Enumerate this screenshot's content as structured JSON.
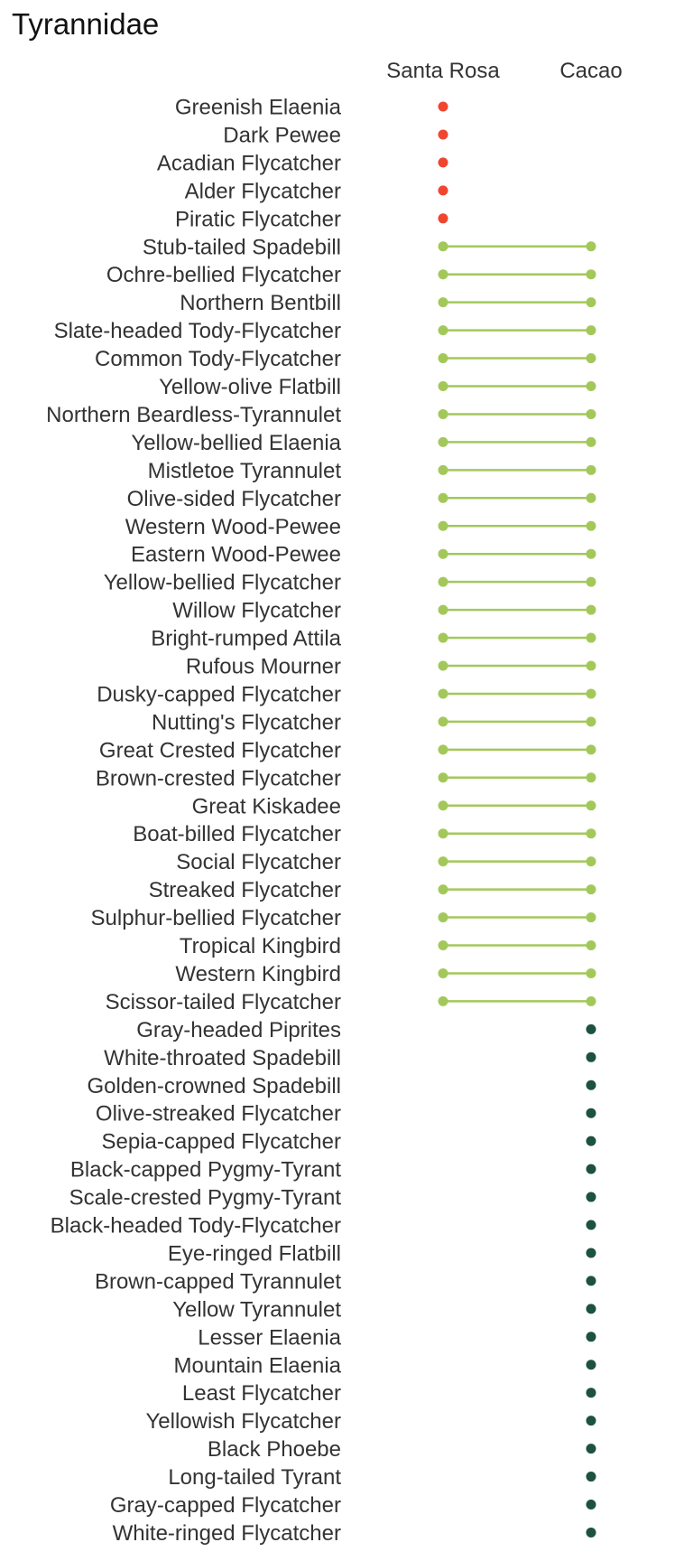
{
  "chart_data": {
    "type": "dumbbell",
    "title": "Tyrannidae",
    "x_categories": [
      "Santa Rosa",
      "Cacao"
    ],
    "groups": [
      {
        "key": "santa_rosa_only",
        "present_at": [
          "Santa Rosa"
        ],
        "color": "#f0452e"
      },
      {
        "key": "both",
        "present_at": [
          "Santa Rosa",
          "Cacao"
        ],
        "color": "#a3c85a"
      },
      {
        "key": "cacao_only",
        "present_at": [
          "Cacao"
        ],
        "color": "#1d5140"
      }
    ],
    "species": [
      {
        "name": "Greenish Elaenia",
        "group": "santa_rosa_only"
      },
      {
        "name": "Dark Pewee",
        "group": "santa_rosa_only"
      },
      {
        "name": "Acadian Flycatcher",
        "group": "santa_rosa_only"
      },
      {
        "name": "Alder Flycatcher",
        "group": "santa_rosa_only"
      },
      {
        "name": "Piratic Flycatcher",
        "group": "santa_rosa_only"
      },
      {
        "name": "Stub-tailed Spadebill",
        "group": "both"
      },
      {
        "name": "Ochre-bellied Flycatcher",
        "group": "both"
      },
      {
        "name": "Northern Bentbill",
        "group": "both"
      },
      {
        "name": "Slate-headed Tody-Flycatcher",
        "group": "both"
      },
      {
        "name": "Common Tody-Flycatcher",
        "group": "both"
      },
      {
        "name": "Yellow-olive Flatbill",
        "group": "both"
      },
      {
        "name": "Northern Beardless-Tyrannulet",
        "group": "both"
      },
      {
        "name": "Yellow-bellied Elaenia",
        "group": "both"
      },
      {
        "name": "Mistletoe Tyrannulet",
        "group": "both"
      },
      {
        "name": "Olive-sided Flycatcher",
        "group": "both"
      },
      {
        "name": "Western Wood-Pewee",
        "group": "both"
      },
      {
        "name": "Eastern Wood-Pewee",
        "group": "both"
      },
      {
        "name": "Yellow-bellied Flycatcher",
        "group": "both"
      },
      {
        "name": "Willow Flycatcher",
        "group": "both"
      },
      {
        "name": "Bright-rumped Attila",
        "group": "both"
      },
      {
        "name": "Rufous Mourner",
        "group": "both"
      },
      {
        "name": "Dusky-capped Flycatcher",
        "group": "both"
      },
      {
        "name": "Nutting's Flycatcher",
        "group": "both"
      },
      {
        "name": "Great Crested Flycatcher",
        "group": "both"
      },
      {
        "name": "Brown-crested Flycatcher",
        "group": "both"
      },
      {
        "name": "Great Kiskadee",
        "group": "both"
      },
      {
        "name": "Boat-billed Flycatcher",
        "group": "both"
      },
      {
        "name": "Social Flycatcher",
        "group": "both"
      },
      {
        "name": "Streaked Flycatcher",
        "group": "both"
      },
      {
        "name": "Sulphur-bellied Flycatcher",
        "group": "both"
      },
      {
        "name": "Tropical Kingbird",
        "group": "both"
      },
      {
        "name": "Western Kingbird",
        "group": "both"
      },
      {
        "name": "Scissor-tailed Flycatcher",
        "group": "both"
      },
      {
        "name": "Gray-headed Piprites",
        "group": "cacao_only"
      },
      {
        "name": "White-throated Spadebill",
        "group": "cacao_only"
      },
      {
        "name": "Golden-crowned Spadebill",
        "group": "cacao_only"
      },
      {
        "name": "Olive-streaked Flycatcher",
        "group": "cacao_only"
      },
      {
        "name": "Sepia-capped Flycatcher",
        "group": "cacao_only"
      },
      {
        "name": "Black-capped Pygmy-Tyrant",
        "group": "cacao_only"
      },
      {
        "name": "Scale-crested Pygmy-Tyrant",
        "group": "cacao_only"
      },
      {
        "name": "Black-headed Tody-Flycatcher",
        "group": "cacao_only"
      },
      {
        "name": "Eye-ringed Flatbill",
        "group": "cacao_only"
      },
      {
        "name": "Brown-capped Tyrannulet",
        "group": "cacao_only"
      },
      {
        "name": "Yellow Tyrannulet",
        "group": "cacao_only"
      },
      {
        "name": "Lesser Elaenia",
        "group": "cacao_only"
      },
      {
        "name": "Mountain Elaenia",
        "group": "cacao_only"
      },
      {
        "name": "Least Flycatcher",
        "group": "cacao_only"
      },
      {
        "name": "Yellowish Flycatcher",
        "group": "cacao_only"
      },
      {
        "name": "Black Phoebe",
        "group": "cacao_only"
      },
      {
        "name": "Long-tailed Tyrant",
        "group": "cacao_only"
      },
      {
        "name": "Gray-capped Flycatcher",
        "group": "cacao_only"
      },
      {
        "name": "White-ringed Flycatcher",
        "group": "cacao_only"
      }
    ],
    "grid": false,
    "legend": "none"
  }
}
